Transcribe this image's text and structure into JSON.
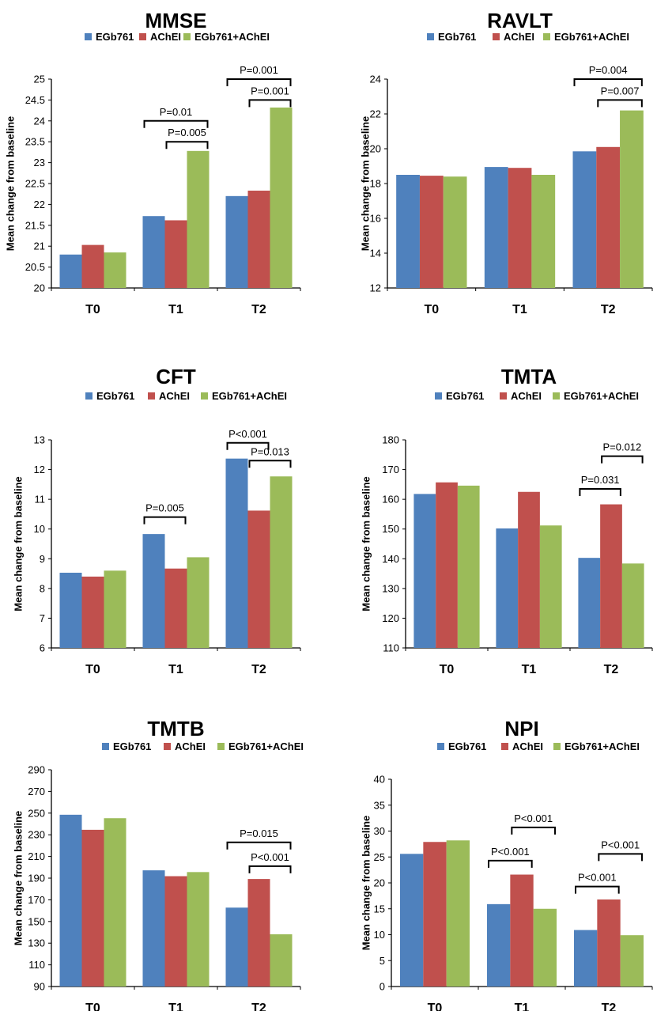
{
  "colors": {
    "egb": "#4F81BD",
    "achei": "#C0504D",
    "combo": "#9BBB59"
  },
  "chart_data": [
    {
      "type": "bar",
      "title": "MMSE",
      "ylabel": "Mean change from baseline",
      "categories": [
        "T0",
        "T1",
        "T2"
      ],
      "ylim": [
        20,
        25
      ],
      "yticks": [
        "20",
        "20.5",
        "21",
        "21.5",
        "22",
        "22.5",
        "23",
        "23.5",
        "24",
        "24.5",
        "25"
      ],
      "series": [
        {
          "name": "EGb761",
          "values": [
            20.8,
            21.72,
            22.2
          ]
        },
        {
          "name": "AChEI",
          "values": [
            21.03,
            21.62,
            22.33
          ]
        },
        {
          "name": "EGb761+AChEI",
          "values": [
            20.85,
            23.28,
            24.32
          ]
        }
      ],
      "annotations": [
        {
          "text": "P=0.01",
          "category": 1,
          "from": 0,
          "to": 2,
          "level": 24.0
        },
        {
          "text": "P=0.005",
          "category": 1,
          "from": 1,
          "to": 2,
          "level": 23.5
        },
        {
          "text": "P=0.001",
          "category": 2,
          "from": 0,
          "to": 2,
          "level": 25.0
        },
        {
          "text": "P=0.001",
          "category": 2,
          "from": 1,
          "to": 2,
          "level": 24.5
        }
      ]
    },
    {
      "type": "bar",
      "title": "RAVLT",
      "ylabel": "Mean change from baseline",
      "categories": [
        "T0",
        "T1",
        "T2"
      ],
      "ylim": [
        12,
        24
      ],
      "yticks": [
        "12",
        "14",
        "16",
        "18",
        "20",
        "22",
        "24"
      ],
      "series": [
        {
          "name": "EGb761",
          "values": [
            18.5,
            18.95,
            19.85
          ]
        },
        {
          "name": "AChEI",
          "values": [
            18.45,
            18.9,
            20.1
          ]
        },
        {
          "name": "EGb761+AChEI",
          "values": [
            18.4,
            18.5,
            22.2
          ]
        }
      ],
      "annotations": [
        {
          "text": "P=0.004",
          "category": 2,
          "from": 0,
          "to": 2,
          "level": 24.0
        },
        {
          "text": "P=0.007",
          "category": 2,
          "from": 1,
          "to": 2,
          "level": 22.8
        }
      ]
    },
    {
      "type": "bar",
      "title": "CFT",
      "ylabel": "Mean change from baseline",
      "categories": [
        "T0",
        "T1",
        "T2"
      ],
      "ylim": [
        6,
        13
      ],
      "yticks": [
        "6",
        "7",
        "8",
        "9",
        "10",
        "11",
        "12",
        "13"
      ],
      "series": [
        {
          "name": "EGb761",
          "values": [
            8.53,
            9.83,
            12.37
          ]
        },
        {
          "name": "AChEI",
          "values": [
            8.4,
            8.67,
            10.62
          ]
        },
        {
          "name": "EGb761+AChEI",
          "values": [
            8.6,
            9.05,
            11.77
          ]
        }
      ],
      "annotations": [
        {
          "text": "P=0.005",
          "category": 1,
          "from": 0,
          "to": 1,
          "level": 10.4
        },
        {
          "text": "P<0.001",
          "category": 2,
          "from": 0,
          "to": 1,
          "level": 12.9
        },
        {
          "text": "P=0.013",
          "category": 2,
          "from": 1,
          "to": 2,
          "level": 12.3
        }
      ]
    },
    {
      "type": "bar",
      "title": "TMTA",
      "ylabel": "Mean change from baseline",
      "categories": [
        "T0",
        "T1",
        "T2"
      ],
      "ylim": [
        110,
        180
      ],
      "yticks": [
        "110",
        "120",
        "130",
        "140",
        "150",
        "160",
        "170",
        "180"
      ],
      "series": [
        {
          "name": "EGb761",
          "values": [
            161.8,
            150.2,
            140.3
          ]
        },
        {
          "name": "AChEI",
          "values": [
            165.7,
            162.5,
            158.3
          ]
        },
        {
          "name": "EGb761+AChEI",
          "values": [
            164.6,
            151.2,
            138.4
          ]
        }
      ],
      "annotations": [
        {
          "text": "P=0.031",
          "category": 2,
          "from": 0,
          "to": 1,
          "level": 163.5
        },
        {
          "text": "P=0.012",
          "category": 2,
          "from": 1,
          "to": 2,
          "level": 174.5
        }
      ]
    },
    {
      "type": "bar",
      "title": "TMTB",
      "ylabel": "Mean change from baseline",
      "categories": [
        "T0",
        "T1",
        "T2"
      ],
      "ylim": [
        90,
        290
      ],
      "yticks": [
        "90",
        "110",
        "130",
        "150",
        "170",
        "190",
        "210",
        "230",
        "250",
        "270",
        "290"
      ],
      "series": [
        {
          "name": "EGb761",
          "values": [
            248.5,
            197.2,
            162.8
          ]
        },
        {
          "name": "AChEI",
          "values": [
            234.6,
            191.8,
            189.2
          ]
        },
        {
          "name": "EGb761+AChEI",
          "values": [
            245.3,
            195.6,
            138.2
          ]
        }
      ],
      "annotations": [
        {
          "text": "P=0.015",
          "category": 2,
          "from": 0,
          "to": 2,
          "level": 223.0
        },
        {
          "text": "P<0.001",
          "category": 2,
          "from": 1,
          "to": 2,
          "level": 201.0
        }
      ]
    },
    {
      "type": "bar",
      "title": "NPI",
      "ylabel": "Mean change from baseline",
      "categories": [
        "T0",
        "T1",
        "T2"
      ],
      "ylim": [
        0,
        40
      ],
      "yticks": [
        "0",
        "5",
        "10",
        "15",
        "20",
        "25",
        "30",
        "35",
        "40"
      ],
      "series": [
        {
          "name": "EGb761",
          "values": [
            25.6,
            15.9,
            10.9
          ]
        },
        {
          "name": "AChEI",
          "values": [
            27.9,
            21.6,
            16.8
          ]
        },
        {
          "name": "EGb761+AChEI",
          "values": [
            28.2,
            15.0,
            9.9
          ]
        }
      ],
      "annotations": [
        {
          "text": "P<0.001",
          "category": 1,
          "from": 0,
          "to": 1,
          "level": 24.3
        },
        {
          "text": "P<0.001",
          "category": 1,
          "from": 1,
          "to": 2,
          "level": 30.7
        },
        {
          "text": "P<0.001",
          "category": 2,
          "from": 0,
          "to": 1,
          "level": 19.3
        },
        {
          "text": "P<0.001",
          "category": 2,
          "from": 1,
          "to": 2,
          "level": 25.6
        }
      ]
    }
  ]
}
